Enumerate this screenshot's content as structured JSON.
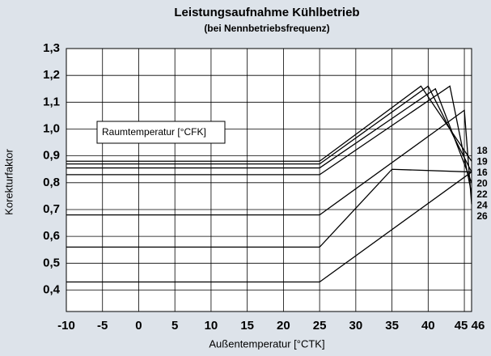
{
  "chart_data": {
    "type": "line",
    "title": "Leistungsaufnahme Kühlbetrieb",
    "subtitle": "(bei Nennbetriebsfrequenz)",
    "x_label": "Außentemperatur [°CTK]",
    "y_label": "Korekturfaktor",
    "annotation": "Raumtemperatur [°CFK]",
    "color": "#000000",
    "grid": true,
    "xlim": [
      -10,
      46
    ],
    "ylim": [
      0.32,
      1.3
    ],
    "xticks": [
      -10,
      -5,
      0,
      5,
      10,
      15,
      20,
      25,
      30,
      35,
      40,
      45,
      46
    ],
    "yticks": [
      {
        "value": 0.4,
        "label": "0,4"
      },
      {
        "value": 0.5,
        "label": "0,5"
      },
      {
        "value": 0.6,
        "label": "0,6"
      },
      {
        "value": 0.7,
        "label": "0,7"
      },
      {
        "value": 0.8,
        "label": "0,8"
      },
      {
        "value": 0.9,
        "label": "0,9"
      },
      {
        "value": 1.0,
        "label": "1,0"
      },
      {
        "value": 1.1,
        "label": "1,1"
      },
      {
        "value": 1.2,
        "label": "1,2"
      },
      {
        "value": 1.3,
        "label": "1,3"
      }
    ],
    "series": [
      {
        "name": "18",
        "x": [
          -10,
          25,
          39,
          46
        ],
        "values": [
          0.88,
          0.88,
          1.16,
          0.88
        ]
      },
      {
        "name": "19",
        "x": [
          -10,
          25,
          40,
          46
        ],
        "values": [
          0.87,
          0.87,
          1.16,
          0.84
        ]
      },
      {
        "name": "16",
        "x": [
          -10,
          25,
          41,
          46
        ],
        "values": [
          0.855,
          0.855,
          1.15,
          0.8
        ]
      },
      {
        "name": "20",
        "x": [
          -10,
          25,
          43,
          46
        ],
        "values": [
          0.83,
          0.83,
          1.16,
          0.76
        ]
      },
      {
        "name": "22",
        "x": [
          -10,
          25,
          45,
          46
        ],
        "values": [
          0.68,
          0.68,
          1.07,
          0.72
        ]
      },
      {
        "name": "24",
        "x": [
          -10,
          25,
          35,
          46
        ],
        "values": [
          0.56,
          0.56,
          0.85,
          0.84
        ]
      },
      {
        "name": "26",
        "x": [
          -10,
          25,
          46
        ],
        "values": [
          0.43,
          0.43,
          0.84
        ]
      }
    ]
  }
}
